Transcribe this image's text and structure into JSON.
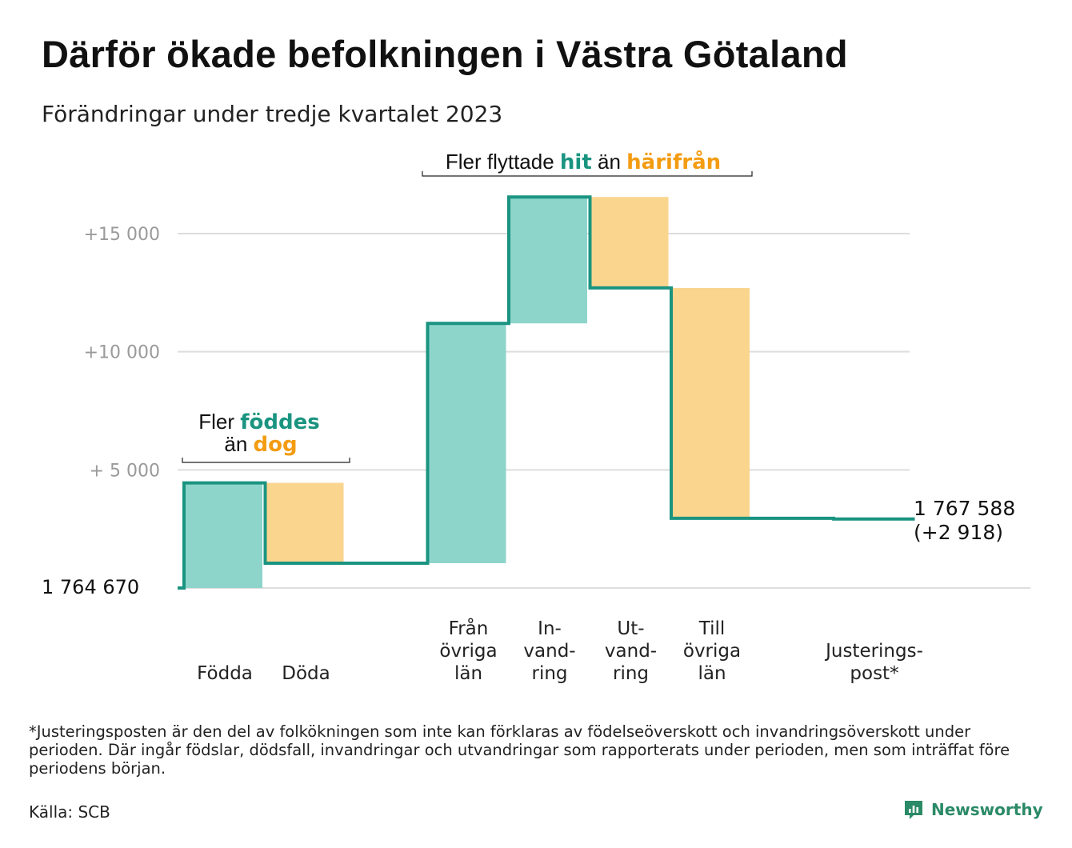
{
  "title": "Därför ökade befolkningen i Västra Götaland",
  "subtitle": "Förändringar under tredje kvartalet 2023",
  "colors": {
    "in": "#8dd5cb",
    "out": "#fad58e",
    "line": "#1a9480",
    "accent_in": "#1a9480",
    "accent_out": "#f39c12",
    "grid": "#dddddd"
  },
  "annotations": {
    "births": {
      "l1_pre": "Fler ",
      "l1_em": "föddes",
      "l2_pre": "än ",
      "l2_em": "dog"
    },
    "migration": {
      "pre": "Fler flyttade ",
      "em1": "hit",
      "mid": " än ",
      "em2": "härifrån"
    }
  },
  "baseline_label": "1 764 670",
  "end_label": {
    "line1": "1 767 588",
    "line2": "(+2 918)"
  },
  "chart_data": {
    "type": "waterfall",
    "title": "Därför ökade befolkningen i Västra Götaland",
    "subtitle": "Förändringar under tredje kvartalet 2023",
    "base_population": 1764670,
    "final_population": 1767588,
    "net_change": 2918,
    "y_ticks": [
      {
        "value": 15000,
        "label": "+15 000"
      },
      {
        "value": 10000,
        "label": "+10 000"
      },
      {
        "value": 5000,
        "label": "+ 5 000"
      }
    ],
    "ylim": [
      0,
      15000
    ],
    "grid": true,
    "steps": [
      {
        "category": "Födda",
        "lines": [
          "Födda"
        ],
        "change": 4450,
        "direction": "in"
      },
      {
        "category": "Döda",
        "lines": [
          "Döda"
        ],
        "change": -3400,
        "direction": "out"
      },
      {
        "category": "",
        "lines": [],
        "change": 0,
        "direction": "none"
      },
      {
        "category": "Från övriga län",
        "lines": [
          "Från",
          "övriga",
          "län"
        ],
        "change": 10150,
        "direction": "in"
      },
      {
        "category": "Invandring",
        "lines": [
          "In-",
          "vand-",
          "ring"
        ],
        "change": 5350,
        "direction": "in"
      },
      {
        "category": "Utvandring",
        "lines": [
          "Ut-",
          "vand-",
          "ring"
        ],
        "change": -3850,
        "direction": "out"
      },
      {
        "category": "Till övriga län",
        "lines": [
          "Till",
          "övriga",
          "län"
        ],
        "change": -9750,
        "direction": "out"
      },
      {
        "category": "",
        "lines": [],
        "change": 0,
        "direction": "none"
      },
      {
        "category": "Justeringspost*",
        "lines": [
          "Justerings-",
          "post*"
        ],
        "change": -32,
        "direction": "none"
      }
    ]
  },
  "footnote": "*Justeringsposten är den del av folkökningen som inte kan förklaras av födelseöverskott och invandringsöverskott under perioden. Där ingår födslar, dödsfall, invandringar och utvandringar som rapporterats under perioden, men som inträffat före periodens början.",
  "source": "Källa: SCB",
  "brand": {
    "name": "Newsworthy",
    "icon": "newsworthy-logo-icon"
  }
}
